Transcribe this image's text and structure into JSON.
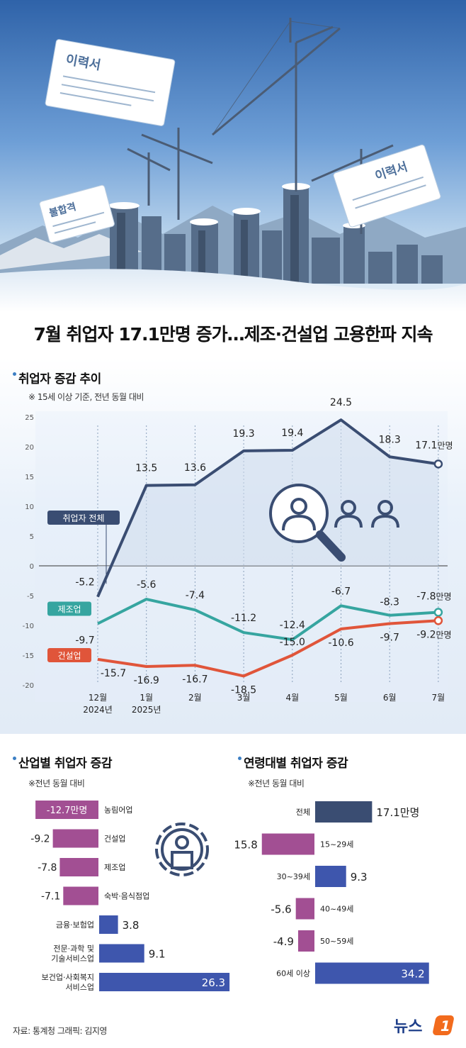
{
  "headline": "7월 취업자 17.1만명 증가…제조·건설업 고용한파 지속",
  "hero": {
    "paper1": "이력서",
    "paper2": "이력서",
    "paper3": "불합격"
  },
  "trend": {
    "title": "취업자 증감 추이",
    "note": "※ 15세 이상 기준, 전년 동월 대비",
    "last_unit": "만명"
  },
  "industry": {
    "title": "산업별 취업자 증감",
    "note": "※전년 동월 대비"
  },
  "age": {
    "title": "연령대별 취업자 증감",
    "note": "※전년 동월 대비"
  },
  "footer": {
    "source": "자료: 통계청  그래픽: 김지영",
    "logo_text": "뉴스",
    "logo_num": "1"
  },
  "colors": {
    "total": "#3a4d72",
    "manufacturing": "#36a5a0",
    "construction": "#e0553a",
    "negative_bar": "#a24f93",
    "positive_bar": "#3e56ad"
  },
  "chart_data": [
    {
      "type": "line",
      "title": "취업자 증감 추이",
      "categories": [
        "12월\n2024년",
        "1월\n2025년",
        "2월",
        "3월",
        "4월",
        "5월",
        "6월",
        "7월"
      ],
      "ylim": [
        -22,
        27
      ],
      "yticks": [
        25,
        20,
        15,
        10,
        5,
        0,
        -5,
        -10,
        -15,
        -20
      ],
      "grid": true,
      "series": [
        {
          "name": "취업자 전체",
          "values": [
            -5.2,
            13.5,
            13.6,
            19.3,
            19.4,
            24.5,
            18.3,
            17.1
          ],
          "labels": [
            "-5.2",
            "13.5",
            "13.6",
            "19.3",
            "19.4",
            "24.5",
            "18.3",
            "17.1"
          ]
        },
        {
          "name": "제조업",
          "values": [
            -9.7,
            -5.6,
            -7.4,
            -11.2,
            -12.4,
            -6.7,
            -8.3,
            -7.8
          ],
          "labels": [
            "-9.7",
            "-5.6",
            "-7.4",
            "-11.2",
            "-12.4",
            "-6.7",
            "-8.3",
            "-7.8"
          ]
        },
        {
          "name": "건설업",
          "values": [
            -15.7,
            -16.9,
            -16.7,
            -18.5,
            -15.0,
            -10.6,
            -9.7,
            -9.2
          ],
          "labels": [
            "-15.7",
            "-16.9",
            "-16.7",
            "-18.5",
            "-15.0",
            "-10.6",
            "-9.7",
            "-9.2"
          ]
        }
      ]
    },
    {
      "type": "bar",
      "title": "산업별 취업자 증감",
      "categories": [
        "농림어업",
        "건설업",
        "제조업",
        "숙박·음식점업",
        "금융·보험업",
        "전문·과학 및\n기술서비스업",
        "보건업·사회복지\n서비스업"
      ],
      "values": [
        -12.7,
        -9.2,
        -7.8,
        -7.1,
        3.8,
        9.1,
        26.3
      ],
      "labels": [
        "-12.7만명",
        "-9.2",
        "-7.8",
        "-7.1",
        "3.8",
        "9.1",
        "26.3"
      ]
    },
    {
      "type": "bar",
      "title": "연령대별 취업자 증감",
      "categories": [
        "전체",
        "15~29세",
        "30~39세",
        "40~49세",
        "50~59세",
        "60세 이상"
      ],
      "values": [
        17.1,
        -15.8,
        9.3,
        -5.6,
        -4.9,
        34.2
      ],
      "labels": [
        "17.1만명",
        "-15.8",
        "9.3",
        "-5.6",
        "-4.9",
        "34.2"
      ]
    }
  ]
}
